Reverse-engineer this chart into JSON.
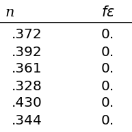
{
  "col1_header": "n",
  "col2_header": "fε",
  "col1_values": [
    ".372",
    ".392",
    ".361",
    ".328",
    ".430",
    ".344"
  ],
  "col2_values": [
    "0.",
    "0.",
    "0.",
    "0.",
    "0.",
    "0."
  ],
  "bg_color": "#ffffff",
  "font_size": 14.5,
  "header_font_size": 15,
  "line_color": "#000000"
}
